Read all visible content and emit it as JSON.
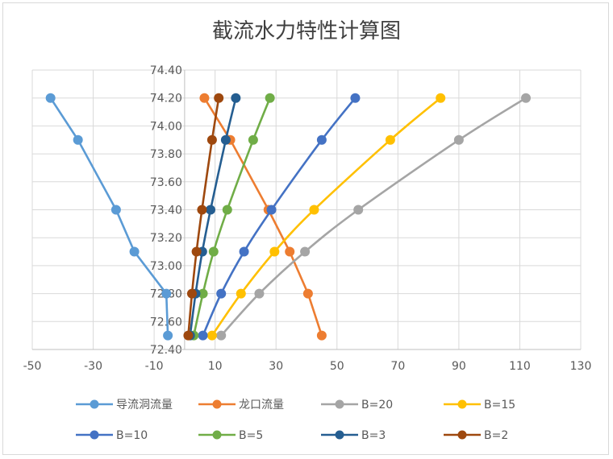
{
  "chart_data": {
    "type": "line",
    "title": "截流水力特性计算图",
    "xlabel": "",
    "ylabel": "",
    "xlim": [
      -50,
      130
    ],
    "ylim": [
      72.4,
      74.4
    ],
    "xticks": [
      -50,
      -30,
      -10,
      10,
      30,
      50,
      70,
      90,
      110,
      130
    ],
    "yticks": [
      "72.40",
      "72.60",
      "72.80",
      "73.00",
      "73.20",
      "73.40",
      "73.60",
      "73.80",
      "74.00",
      "74.20",
      "74.40"
    ],
    "grid": true,
    "legend_position": "bottom",
    "y": [
      72.5,
      72.8,
      73.1,
      73.4,
      73.9,
      74.2
    ],
    "series": [
      {
        "name": "导流洞流量",
        "color": "#5b9bd5",
        "x": [
          -5.5,
          -6,
          -16.5,
          -22.5,
          -35,
          -44
        ]
      },
      {
        "name": "龙口流量",
        "color": "#ed7d31",
        "x": [
          45,
          40.5,
          34.5,
          27.5,
          15,
          6.5
        ]
      },
      {
        "name": "B=20",
        "color": "#a5a5a5",
        "x": [
          12,
          24.5,
          39.5,
          57,
          90,
          112
        ]
      },
      {
        "name": "B=15",
        "color": "#ffc000",
        "x": [
          9,
          18.5,
          29.5,
          42.5,
          67.5,
          84
        ]
      },
      {
        "name": "B=10",
        "color": "#4472c4",
        "x": [
          6,
          12,
          19.5,
          28.5,
          45,
          56
        ]
      },
      {
        "name": "B=5",
        "color": "#70ad47",
        "x": [
          3,
          6,
          9.5,
          14,
          22.5,
          28
        ]
      },
      {
        "name": "B=3",
        "color": "#255e91",
        "x": [
          1.8,
          3.6,
          5.8,
          8.5,
          13.5,
          16.8
        ]
      },
      {
        "name": "B=2",
        "color": "#9e480e",
        "x": [
          1.2,
          2.4,
          3.9,
          5.7,
          9,
          11.2
        ]
      }
    ]
  }
}
